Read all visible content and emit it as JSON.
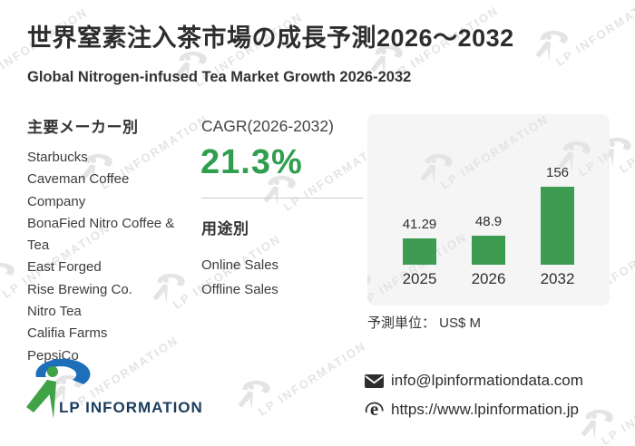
{
  "header": {
    "title_jp": "世界窒素注入茶市場の成長予測2026～2032",
    "title_en": "Global Nitrogen-infused Tea Market Growth 2026-2032"
  },
  "manufacturers": {
    "heading": "主要メーカー別",
    "items": [
      "Starbucks",
      "Caveman Coffee Company",
      "BonaFied Nitro Coffee & Tea",
      "East Forged",
      "Rise Brewing Co.",
      "Nitro Tea",
      "Califia Farms",
      "PepsiCo"
    ]
  },
  "cagr": {
    "label": "CAGR(2026-2032)",
    "value": "21.3%"
  },
  "applications": {
    "heading": "用途別",
    "items": [
      "Online Sales",
      "Offline Sales"
    ]
  },
  "chart_data": {
    "type": "bar",
    "categories": [
      "2025",
      "2026",
      "2032"
    ],
    "values": [
      41.29,
      48.9,
      156
    ],
    "title": "",
    "xlabel": "",
    "ylabel": "",
    "ylim": [
      0,
      170
    ],
    "grid": false,
    "legend": false,
    "bar_color": "#3d9b52",
    "unit_note": "予測単位： US$ M"
  },
  "footer": {
    "logo_text": "LP INFORMATION",
    "email": "info@lpinformationdata.com",
    "website": "https://www.lpinformation.jp"
  },
  "watermark": {
    "text": "LP INFORMATION"
  },
  "colors": {
    "accent_green": "#2f9e4f",
    "bar_green": "#3d9b52",
    "logo_blue": "#1c6fb8",
    "logo_green": "#3fa245",
    "logo_navy": "#1b3c5c",
    "card_bg": "#f5f5f5",
    "watermark_gray": "#e4e4e4"
  }
}
